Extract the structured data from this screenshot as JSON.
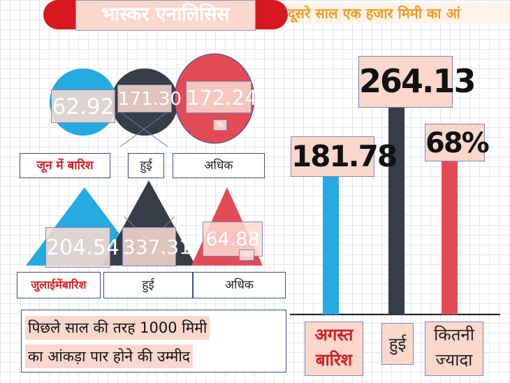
{
  "colors": {
    "blue": "#25aae1",
    "dark": "#363d47",
    "red": "#e24b56",
    "header_red": "#d7191f",
    "accent_red_text": "#d31f26",
    "orange_text": "#f29b1f",
    "peach": "#fbd7cc"
  },
  "header": {
    "title": "भास्कर एनालिसिस",
    "subtitle": "दूसरे साल एक हजार मिमी का आं"
  },
  "june": {
    "values": [
      "62.92",
      "171.30",
      "172.24"
    ],
    "percent_sign": "%",
    "labels": [
      "जून में बारिश",
      "हुई",
      "अधिक"
    ]
  },
  "july": {
    "values": [
      "204.54",
      "337.31",
      "64.88"
    ],
    "percent_sign": "%",
    "labels": [
      "जुलाईमेंबारिश",
      "हुई",
      "अधिक"
    ]
  },
  "note": {
    "line1": "पिछले साल की तरह 1000 मिमी",
    "line2": "का आंकड़ा पार होने की उम्मीद"
  },
  "chart_data": [
    {
      "type": "bar",
      "categories": [
        "जून में बारिश",
        "हुई",
        "अधिक"
      ],
      "values": [
        62.92,
        171.3,
        172.24
      ]
    },
    {
      "type": "bar",
      "categories": [
        "जुलाईमेंबारिश",
        "हुई",
        "अधिक"
      ],
      "values": [
        204.54,
        337.31,
        64.88
      ]
    },
    {
      "type": "bar",
      "categories": [
        "अगस्त बारिश",
        "हुई",
        "कितनी ज्यादा"
      ],
      "category_lines": [
        [
          "अगस्त",
          "बारिश"
        ],
        [
          "हुई"
        ],
        [
          "कितनी",
          "ज्यादा"
        ]
      ],
      "values": [
        181.78,
        264.13,
        68
      ],
      "value_labels": [
        "181.78",
        "264.13",
        "68%"
      ]
    }
  ]
}
